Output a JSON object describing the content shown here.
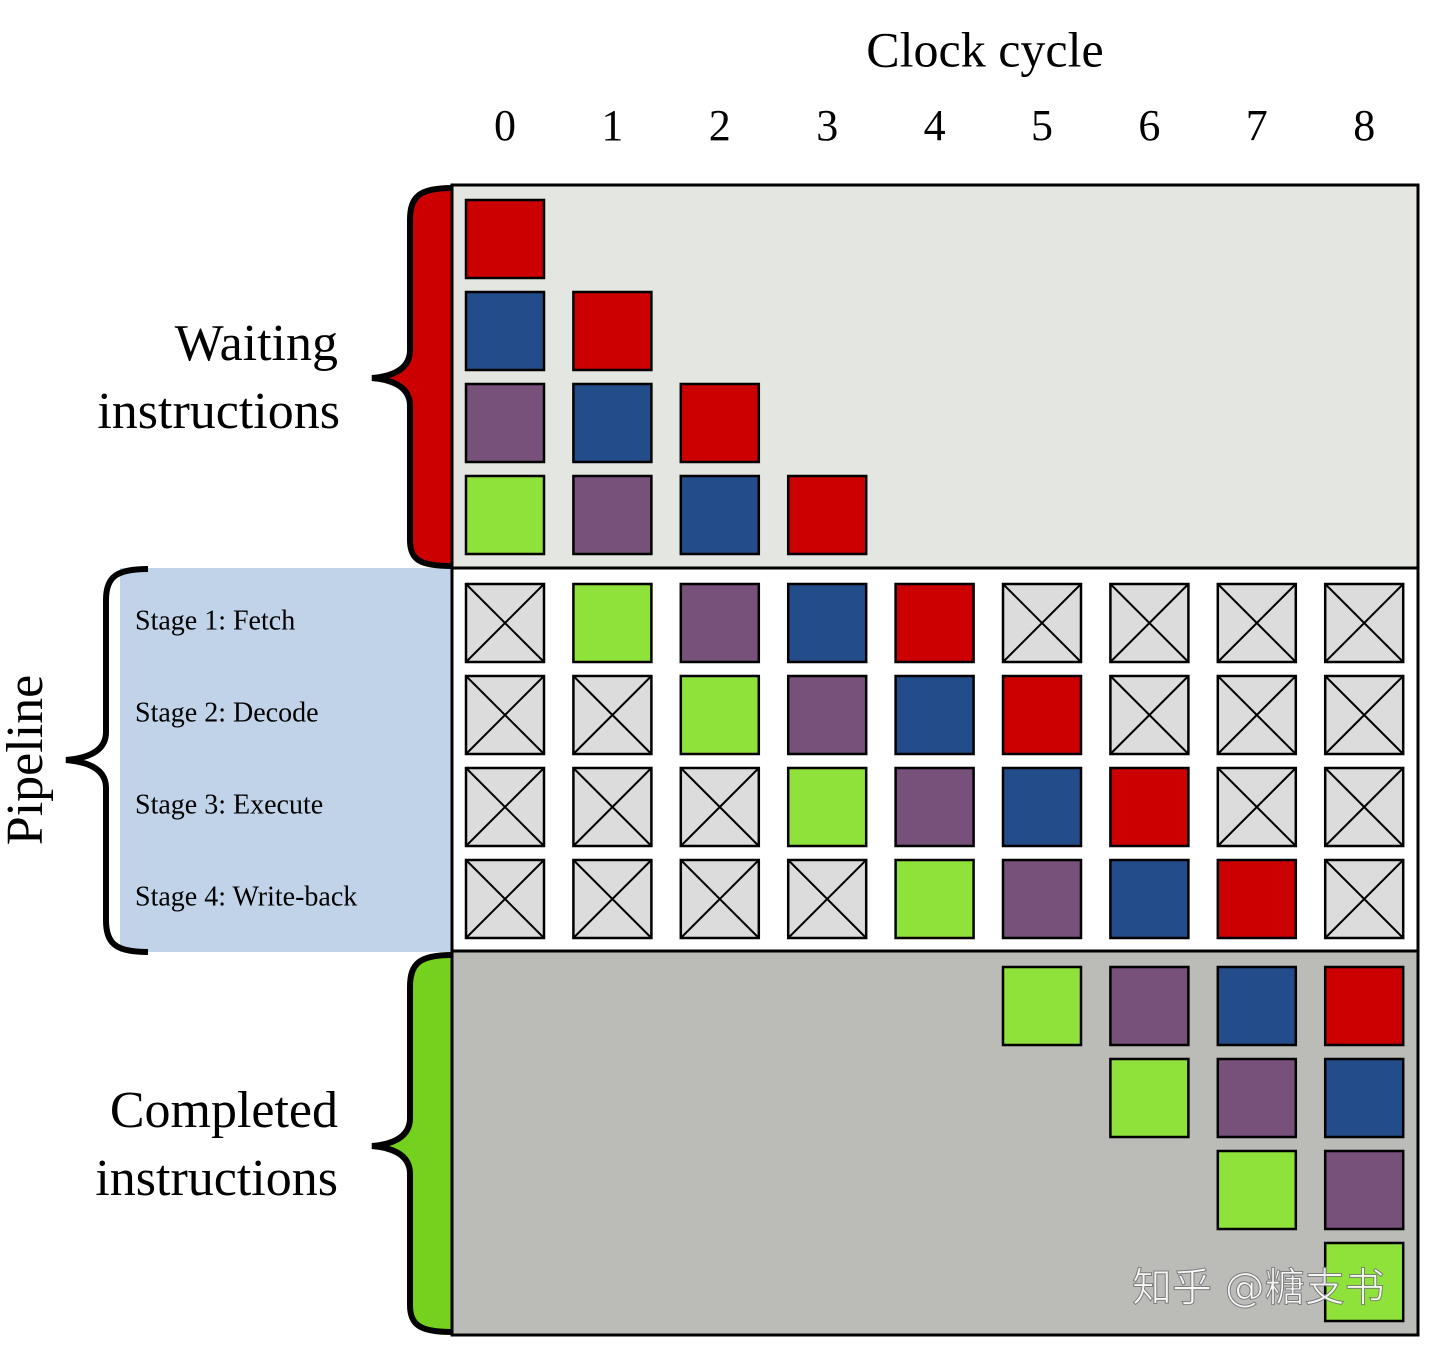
{
  "header": {
    "title": "Clock cycle",
    "cycles": [
      "0",
      "1",
      "2",
      "3",
      "4",
      "5",
      "6",
      "7",
      "8"
    ]
  },
  "waiting": {
    "lines": [
      "Waiting",
      "instructions"
    ]
  },
  "pipeline": {
    "label": "Pipeline",
    "stages": [
      "Stage 1: Fetch",
      "Stage 2: Decode",
      "Stage 3: Execute",
      "Stage 4: Write-back"
    ]
  },
  "completed": {
    "lines": [
      "Completed",
      "instructions"
    ]
  },
  "watermark": "知乎 @糖支书"
}
